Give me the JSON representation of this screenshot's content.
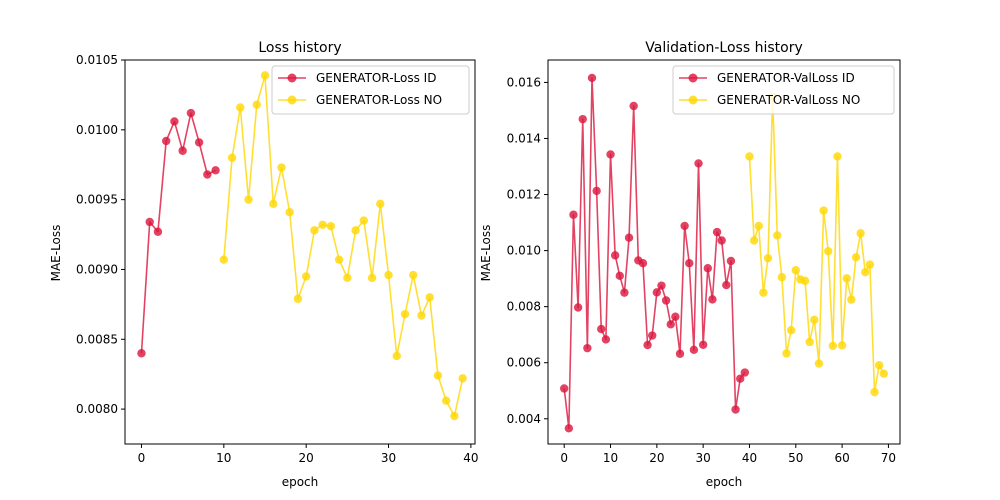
{
  "chart_data": [
    {
      "type": "line",
      "title": "Loss history",
      "xlabel": "epoch",
      "ylabel": "MAE-Loss",
      "xlim": [
        -2,
        40.5
      ],
      "ylim": [
        0.00775,
        0.0105
      ],
      "xticks": [
        0,
        10,
        20,
        30,
        40
      ],
      "xtick_labels": [
        "0",
        "10",
        "20",
        "30",
        "40"
      ],
      "yticks": [
        0.008,
        0.0085,
        0.009,
        0.0095,
        0.01,
        0.0105
      ],
      "ytick_labels": [
        "0.0080",
        "0.0085",
        "0.0090",
        "0.0095",
        "0.0100",
        "0.0105"
      ],
      "legend_position": "top-right",
      "series": [
        {
          "name": "GENERATOR-Loss ID",
          "color": "#dc143c",
          "x": [
            0,
            1,
            2,
            3,
            4,
            5,
            6,
            7,
            8,
            9
          ],
          "y": [
            0.0084,
            0.00934,
            0.00927,
            0.00992,
            0.01006,
            0.00985,
            0.01012,
            0.00991,
            0.00968,
            0.00971
          ]
        },
        {
          "name": "GENERATOR-Loss NO",
          "color": "#ffd700",
          "x": [
            10,
            11,
            12,
            13,
            14,
            15,
            16,
            17,
            18,
            19,
            20,
            21,
            22,
            23,
            24,
            25,
            26,
            27,
            28,
            29,
            30,
            31,
            32,
            33,
            34,
            35,
            36,
            37,
            38,
            39
          ],
          "y": [
            0.00907,
            0.0098,
            0.01016,
            0.0095,
            0.01018,
            0.01039,
            0.00947,
            0.00973,
            0.00941,
            0.00879,
            0.00895,
            0.00928,
            0.00932,
            0.00931,
            0.00907,
            0.00894,
            0.00928,
            0.00935,
            0.00894,
            0.00947,
            0.00896,
            0.00838,
            0.00868,
            0.00896,
            0.00867,
            0.0088,
            0.00824,
            0.00806,
            0.00795,
            0.00822
          ]
        }
      ]
    },
    {
      "type": "line",
      "title": "Validation-Loss history",
      "xlabel": "epoch",
      "ylabel": "MAE-Loss",
      "xlim": [
        -3.5,
        72.5
      ],
      "ylim": [
        0.0031,
        0.0168
      ],
      "xticks": [
        0,
        10,
        20,
        30,
        40,
        50,
        60,
        70
      ],
      "xtick_labels": [
        "0",
        "10",
        "20",
        "30",
        "40",
        "50",
        "60",
        "70"
      ],
      "yticks": [
        0.004,
        0.006,
        0.008,
        0.01,
        0.012,
        0.014,
        0.016
      ],
      "ytick_labels": [
        "0.004",
        "0.006",
        "0.008",
        "0.010",
        "0.012",
        "0.014",
        "0.016"
      ],
      "legend_position": "top-right",
      "series": [
        {
          "name": "GENERATOR-ValLoss ID",
          "color": "#dc143c",
          "x": [
            0,
            1,
            2,
            3,
            4,
            5,
            6,
            7,
            8,
            9,
            10,
            11,
            12,
            13,
            14,
            15,
            16,
            17,
            18,
            19,
            20,
            21,
            22,
            23,
            24,
            25,
            26,
            27,
            28,
            29,
            30,
            31,
            32,
            33,
            34,
            35,
            36,
            37,
            38,
            39
          ],
          "y": [
            0.00508,
            0.00366,
            0.01128,
            0.00797,
            0.01469,
            0.00652,
            0.01616,
            0.01213,
            0.0072,
            0.00683,
            0.01343,
            0.00983,
            0.0091,
            0.0085,
            0.01046,
            0.01516,
            0.00965,
            0.00955,
            0.00663,
            0.00697,
            0.00851,
            0.00875,
            0.00822,
            0.00737,
            0.00764,
            0.00632,
            0.01088,
            0.00955,
            0.00646,
            0.01311,
            0.00664,
            0.00937,
            0.00826,
            0.01066,
            0.01036,
            0.00877,
            0.00963,
            0.00433,
            0.00543,
            0.00565
          ]
        },
        {
          "name": "GENERATOR-ValLoss NO",
          "color": "#ffd700",
          "x": [
            40,
            41,
            42,
            43,
            44,
            45,
            46,
            47,
            48,
            49,
            50,
            51,
            52,
            53,
            54,
            55,
            56,
            57,
            58,
            59,
            60,
            61,
            62,
            63,
            64,
            65,
            66,
            67,
            68,
            69
          ],
          "y": [
            0.01336,
            0.01036,
            0.01088,
            0.0085,
            0.00973,
            0.01548,
            0.01054,
            0.00905,
            0.00633,
            0.00716,
            0.0093,
            0.00897,
            0.00892,
            0.00674,
            0.00753,
            0.00597,
            0.01143,
            0.00998,
            0.0066,
            0.01336,
            0.00662,
            0.00901,
            0.00825,
            0.00976,
            0.01062,
            0.00923,
            0.0095,
            0.00495,
            0.00591,
            0.00561
          ]
        }
      ]
    }
  ]
}
